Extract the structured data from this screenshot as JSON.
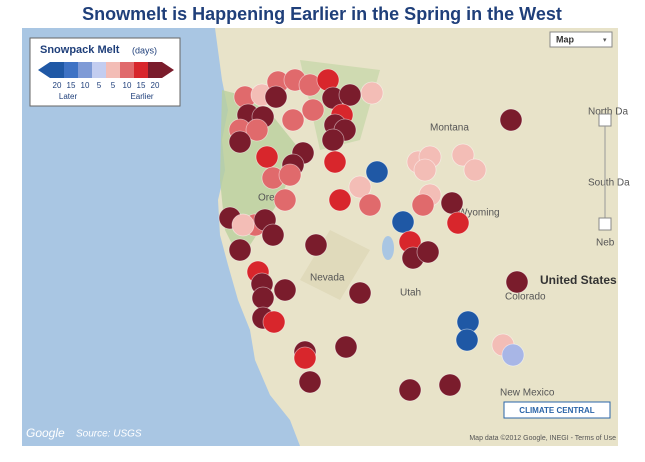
{
  "title": "Snowmelt is Happening Earlier in the Spring in the West",
  "legend": {
    "title": "Snowpack Melt",
    "unit": "(days)",
    "ticks": [
      "20",
      "15",
      "10",
      "5",
      "5",
      "10",
      "15",
      "20"
    ],
    "later": "Later",
    "earlier": "Earlier"
  },
  "map_type": "Map",
  "places": [
    "Montana",
    "Oregon",
    "Nevada",
    "Utah",
    "Wyoming",
    "Colorado",
    "New Mexico",
    "United States",
    "North Da",
    "South Da",
    "Neb"
  ],
  "attribution": {
    "google": "Google",
    "source": "Source: USGS",
    "terms": "Map data ©2012 Google, INEGI - Terms of Use"
  },
  "logo": "CLIMATE CENTRAL"
}
